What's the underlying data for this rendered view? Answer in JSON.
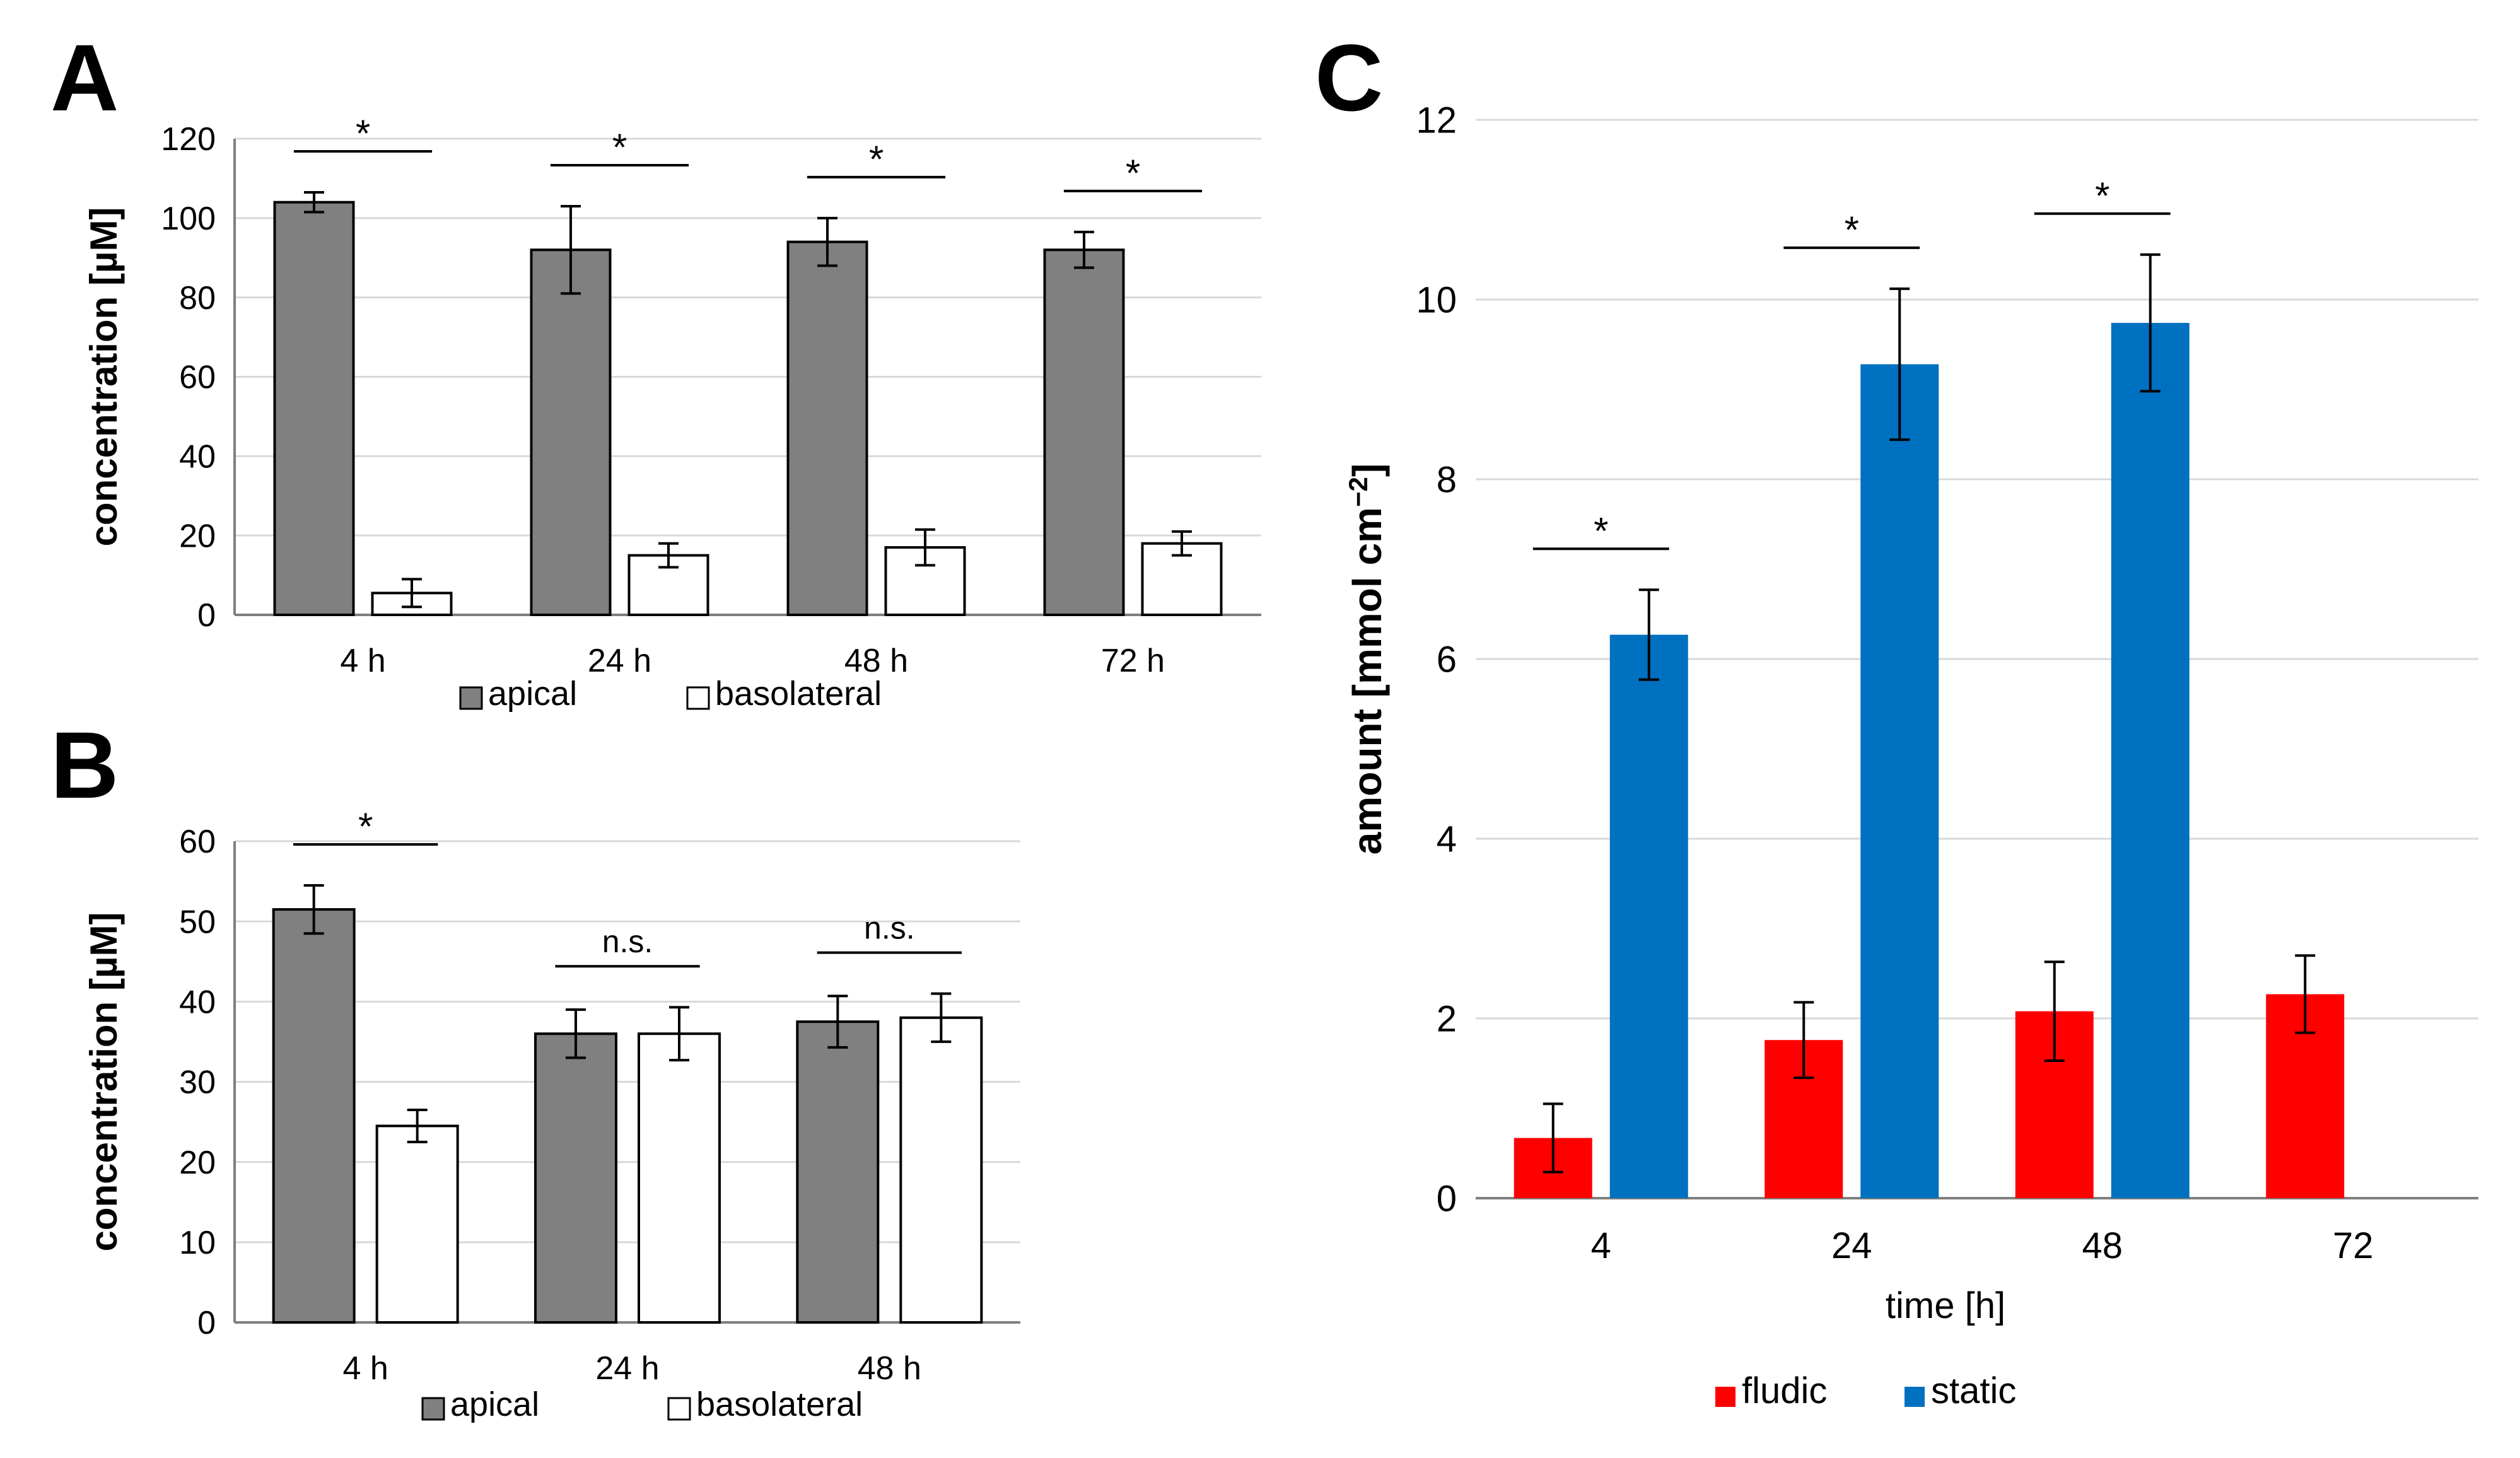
{
  "chart_data": [
    {
      "panel": "A",
      "type": "bar",
      "categories": [
        "4 h",
        "24 h",
        "48 h",
        "72 h"
      ],
      "series": [
        {
          "name": "apical",
          "color": "#808080",
          "values": [
            104,
            92,
            94,
            92
          ],
          "errors": [
            2.5,
            11,
            6,
            4.5
          ]
        },
        {
          "name": "basolateral",
          "color": "#ffffff",
          "values": [
            5.5,
            15,
            17,
            18
          ],
          "errors": [
            3.5,
            3,
            4.5,
            3
          ]
        }
      ],
      "ylabel": "concentration [µM]",
      "ylim": [
        0,
        120
      ],
      "yticks": [
        0,
        20,
        40,
        60,
        80,
        100,
        120
      ],
      "ytick_labels": [
        "0",
        "20",
        "40",
        "60",
        "80",
        "100",
        "120"
      ],
      "grid": true,
      "legend": "bottom",
      "significance": [
        "*",
        "*",
        "*",
        "*"
      ]
    },
    {
      "panel": "B",
      "type": "bar",
      "categories": [
        "4 h",
        "24 h",
        "48 h"
      ],
      "series": [
        {
          "name": "apical",
          "color": "#808080",
          "values": [
            51.5,
            36,
            37.5
          ],
          "errors": [
            3,
            3,
            3.2
          ]
        },
        {
          "name": "basolateral",
          "color": "#ffffff",
          "values": [
            24.5,
            36,
            38
          ],
          "errors": [
            2,
            3.3,
            3
          ]
        }
      ],
      "ylabel": "concentration [µM]",
      "ylim": [
        0,
        60
      ],
      "yticks": [
        0,
        10,
        20,
        30,
        40,
        50,
        60
      ],
      "ytick_labels": [
        "0",
        "10",
        "20",
        "30",
        "40",
        "50",
        "60"
      ],
      "grid": true,
      "legend": "bottom",
      "significance": [
        "*",
        "n.s.",
        "n.s."
      ]
    },
    {
      "panel": "C",
      "type": "bar",
      "categories": [
        "4",
        "24",
        "48",
        "72"
      ],
      "series": [
        {
          "name": "fludic",
          "color": "#ff0000",
          "values": [
            0.67,
            1.76,
            2.08,
            2.27
          ],
          "errors": [
            0.38,
            0.42,
            0.55,
            0.43
          ]
        },
        {
          "name": "static",
          "color": "#0070c0",
          "values": [
            6.27,
            9.28,
            9.74,
            null
          ],
          "errors": [
            0.5,
            0.84,
            0.76,
            null
          ]
        }
      ],
      "xlabel": "time [h]",
      "ylabel_main": "amount [mmol cm",
      "ylabel_sup": "−2",
      "ylabel_end": "]",
      "ylim": [
        0,
        12
      ],
      "yticks": [
        0,
        2,
        4,
        6,
        8,
        10,
        12
      ],
      "ytick_labels": [
        "0",
        "2",
        "4",
        "6",
        "8",
        "10",
        "12"
      ],
      "grid": true,
      "legend": "bottom",
      "significance": [
        "*",
        "*",
        "*",
        null
      ]
    }
  ],
  "panel_letters": {
    "a": "A",
    "b": "B",
    "c": "C"
  }
}
